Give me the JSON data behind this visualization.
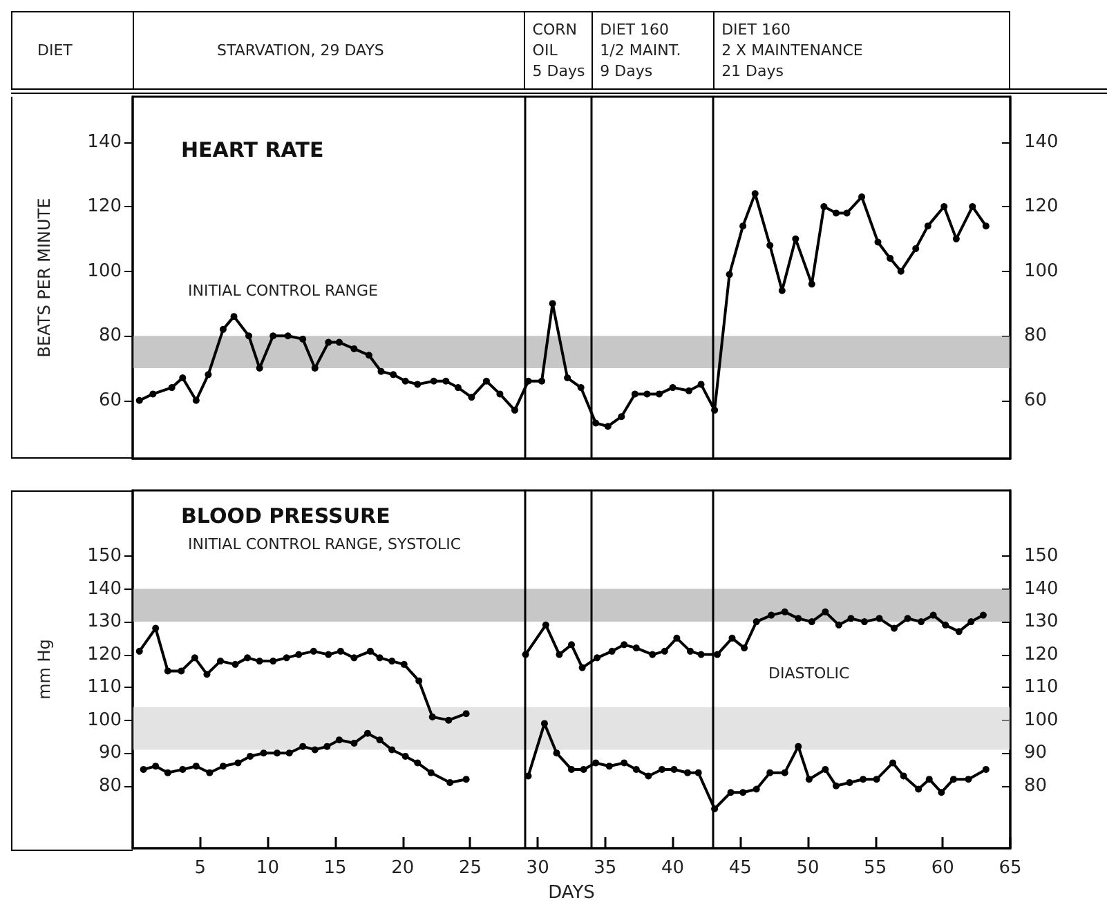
{
  "chart_data": [
    {
      "type": "line",
      "title": "HEART RATE",
      "ylabel": "BEATS PER MINUTE",
      "annotations": [
        "DIET",
        "STARVATION, 29 DAYS",
        "CORN\nOIL\n5 Days",
        "DIET 160\n1/2 MAINT.\n9 Days",
        "DIET 160\n2 X MAINTENANCE\n21 Days"
      ],
      "xlim": [
        0,
        65
      ],
      "ylim": [
        42,
        154
      ],
      "yticks": [
        60,
        80,
        100,
        120,
        140
      ],
      "y2lim": [
        42,
        154
      ],
      "y2ticks": [
        60,
        80,
        100,
        120,
        140
      ],
      "tick_labels": "y",
      "marker": "circle",
      "line_style": "solid",
      "ref_lines": [
        {
          "axis": "x",
          "value": 29
        },
        {
          "axis": "x",
          "value": 34
        },
        {
          "axis": "x",
          "value": 43
        }
      ],
      "bands": [
        {
          "axis": "y",
          "from": 70,
          "to": 80,
          "label": "INITIAL CONTROL RANGE",
          "color": "#999999"
        }
      ],
      "series": [
        {
          "color": "#000000",
          "x": [
            0.5,
            1.5,
            2.9,
            3.7,
            4.7,
            5.6,
            6.7,
            7.5,
            8.6,
            9.4,
            10.4,
            11.5,
            12.6,
            13.5,
            14.5,
            15.3,
            16.4,
            17.5,
            18.4,
            19.3,
            20.2,
            21.1,
            22.3,
            23.2,
            24.1,
            25.1,
            26.2,
            27.2,
            28.3,
            29.3,
            30.3,
            31.1,
            32.2,
            33.2,
            34.3,
            35.2,
            36.2,
            37.2,
            38.1,
            39,
            40,
            41.2,
            42.1,
            43.1,
            44.2,
            45.2,
            46.1,
            47.2,
            48.1,
            49.1,
            50.3,
            51.2,
            52.1,
            52.9,
            54,
            55.2,
            56.1,
            56.9,
            58,
            58.9,
            60.1,
            61,
            62.2,
            63.2
          ],
          "values": [
            60,
            62,
            64,
            67,
            60,
            68,
            82,
            86,
            80,
            70,
            80,
            80,
            79,
            70,
            78,
            78,
            76,
            74,
            69,
            68,
            66,
            65,
            66,
            66,
            64,
            61,
            66,
            62,
            57,
            66,
            66,
            90,
            67,
            64,
            53,
            52,
            55,
            62,
            62,
            62,
            64,
            63,
            65,
            57,
            99,
            114,
            124,
            108,
            94,
            110,
            96,
            120,
            118,
            118,
            123,
            109,
            104,
            100,
            107,
            114,
            120,
            110,
            120,
            114
          ]
        }
      ]
    },
    {
      "type": "line",
      "title": "BLOOD PRESSURE",
      "ylabel": "mm Hg",
      "xlabel": "DAYS",
      "xlim": [
        0,
        65
      ],
      "xticks": [
        5,
        10,
        15,
        20,
        25,
        30,
        35,
        40,
        45,
        50,
        55,
        60,
        65
      ],
      "ylim": [
        61,
        170
      ],
      "yticks": [
        80,
        90,
        100,
        110,
        120,
        130,
        140,
        150
      ],
      "y2lim": [
        61,
        170
      ],
      "y2ticks": [
        80,
        90,
        100,
        110,
        120,
        130,
        140,
        150
      ],
      "marker": "circle",
      "line_style": "solid",
      "ref_lines": [
        {
          "axis": "x",
          "value": 29
        },
        {
          "axis": "x",
          "value": 34
        },
        {
          "axis": "x",
          "value": 43
        }
      ],
      "bands": [
        {
          "axis": "y",
          "from": 130,
          "to": 140,
          "label": "INITIAL CONTROL RANGE, SYSTOLIC",
          "color": "#999999"
        },
        {
          "axis": "y",
          "from": 91,
          "to": 104,
          "label": "DIASTOLIC",
          "color": "#cccccc"
        }
      ],
      "series": [
        {
          "color": "#000000",
          "x": [
            0.5,
            1.7,
            2.6,
            3.6,
            4.6,
            5.5,
            6.5,
            7.6,
            8.5,
            9.4,
            10.4,
            11.4,
            12.3,
            13.4,
            14.5,
            15.4,
            16.4,
            17.6,
            18.3,
            19.2,
            20.1,
            21.2,
            22.2,
            23.4,
            24.7,
            27,
            29.1,
            30.6,
            31.6,
            32.5,
            33.3,
            34.4,
            35.5,
            36.4,
            37.3,
            38.5,
            39.4,
            40.3,
            41.3,
            42.1,
            43.3,
            44.4,
            45.3,
            46.2,
            47.3,
            48.3,
            49.3,
            50.3,
            51.3,
            52.3,
            53.2,
            54.2,
            55.3,
            56.4,
            57.4,
            58.4,
            59.3,
            60.2,
            61.2,
            62.1,
            63
          ],
          "values": [
            121,
            128,
            115,
            115,
            119,
            114,
            118,
            117,
            119,
            118,
            118,
            119,
            120,
            121,
            120,
            121,
            119,
            121,
            119,
            118,
            117,
            112,
            101,
            100,
            102,
            null,
            120,
            129,
            120,
            123,
            116,
            119,
            121,
            123,
            122,
            120,
            121,
            125,
            121,
            120,
            120,
            125,
            122,
            130,
            132,
            133,
            131,
            130,
            133,
            129,
            131,
            130,
            131,
            128,
            131,
            130,
            132,
            129,
            127,
            130,
            132
          ]
        },
        {
          "color": "#000000",
          "x": [
            0.8,
            1.7,
            2.6,
            3.7,
            4.7,
            5.7,
            6.7,
            7.8,
            8.7,
            9.7,
            10.7,
            11.6,
            12.6,
            13.5,
            14.4,
            15.3,
            16.4,
            17.4,
            18.3,
            19.2,
            20.2,
            21.1,
            22.1,
            23.5,
            24.7,
            27,
            29.3,
            30.5,
            31.4,
            32.5,
            33.4,
            34.3,
            35.3,
            36.4,
            37.3,
            38.2,
            39.2,
            40.1,
            41.1,
            41.9,
            43.1,
            44.3,
            45.2,
            46.2,
            47.2,
            48.3,
            49.3,
            50.1,
            51.3,
            52.1,
            53.1,
            54.1,
            55.1,
            56.3,
            57.1,
            58.2,
            59,
            59.9,
            60.8,
            61.9,
            63.2
          ],
          "values": [
            85,
            86,
            84,
            85,
            86,
            84,
            86,
            87,
            89,
            90,
            90,
            90,
            92,
            91,
            92,
            94,
            93,
            96,
            94,
            91,
            89,
            87,
            84,
            81,
            82,
            null,
            83,
            99,
            90,
            85,
            85,
            87,
            86,
            87,
            85,
            83,
            85,
            85,
            84,
            84,
            73,
            78,
            78,
            79,
            84,
            84,
            92,
            82,
            85,
            80,
            81,
            82,
            82,
            87,
            83,
            79,
            82,
            78,
            82,
            82,
            85
          ]
        }
      ]
    }
  ]
}
